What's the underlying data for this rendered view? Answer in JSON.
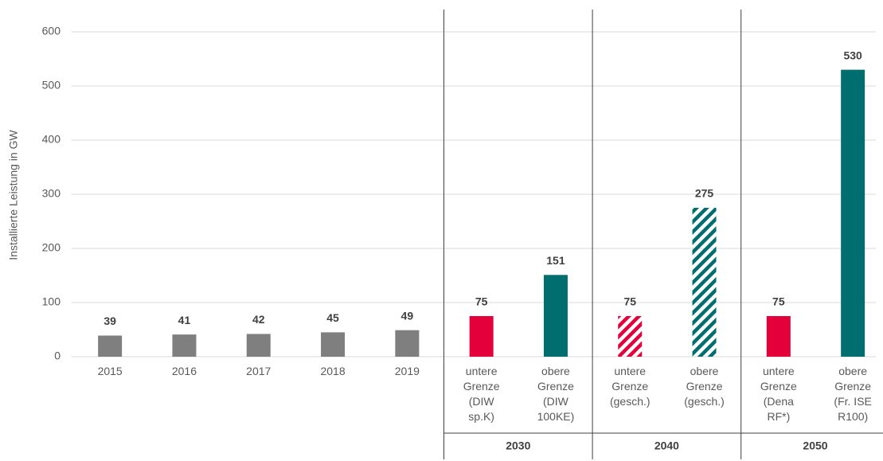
{
  "chart_data": {
    "type": "bar",
    "y_label": "Installierte Leistung in GW",
    "categories": [
      [
        "2015"
      ],
      [
        "2016"
      ],
      [
        "2017"
      ],
      [
        "2018"
      ],
      [
        "2019"
      ],
      [
        "untere",
        "Grenze",
        "(DIW",
        "sp.K)"
      ],
      [
        "obere",
        "Grenze",
        "(DIW",
        "100KE)"
      ],
      [
        "untere",
        "Grenze",
        "(gesch.)"
      ],
      [
        "obere",
        "Grenze",
        "(gesch.)"
      ],
      [
        "untere",
        "Grenze",
        "(Dena",
        "RF*)"
      ],
      [
        "obere",
        "Grenze",
        "(Fr. ISE",
        "R100)"
      ]
    ],
    "values": [
      39,
      41,
      42,
      45,
      49,
      75,
      151,
      75,
      275,
      75,
      530
    ],
    "colors": [
      "#7f7f7f",
      "#7f7f7f",
      "#7f7f7f",
      "#7f7f7f",
      "#7f7f7f",
      "#e4003b",
      "#006e6e",
      "#e4003b",
      "#006e6e",
      "#e4003b",
      "#006e6e"
    ],
    "hatched": [
      false,
      false,
      false,
      false,
      false,
      false,
      false,
      true,
      true,
      false,
      false
    ],
    "groups": [
      "2030",
      "2040",
      "2050"
    ],
    "ylim": [
      0,
      600
    ],
    "yticks": [
      0,
      100,
      200,
      300,
      400,
      500,
      600
    ],
    "grid": true
  }
}
